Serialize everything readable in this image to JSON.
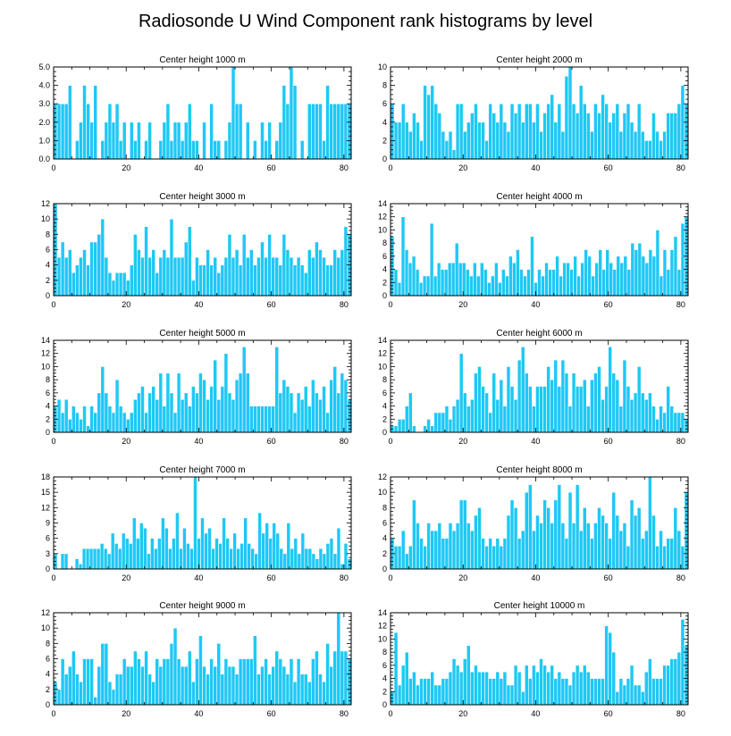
{
  "figure_title": "Radiosonde U Wind Component rank histograms by level",
  "colors": {
    "bar": "#1ec8f5",
    "bar_edge": "#ffffff",
    "axis": "#000000"
  },
  "chart_data": [
    {
      "type": "bar",
      "title": "Center height 1000 m",
      "xlim": [
        0,
        82
      ],
      "ylim": [
        0,
        5
      ],
      "xticks": [
        0,
        20,
        40,
        60,
        80
      ],
      "yticks": [
        0,
        1,
        2,
        3,
        4,
        5
      ],
      "ytick_labels": [
        "0.0",
        "1.0",
        "2.0",
        "3.0",
        "4.0",
        "5.0"
      ],
      "values": [
        3,
        3,
        3,
        3,
        4,
        0,
        1,
        2,
        4,
        3,
        2,
        4,
        0,
        1,
        2,
        3,
        2,
        3,
        1,
        2,
        0,
        2,
        1,
        2,
        0,
        1,
        2,
        0,
        0,
        1,
        2,
        3,
        1,
        2,
        2,
        1,
        2,
        3,
        1,
        1,
        0,
        2,
        0,
        3,
        1,
        1,
        0,
        1,
        2,
        5,
        3,
        3,
        0,
        2,
        0,
        1,
        0,
        2,
        1,
        2,
        0,
        1,
        2,
        4,
        3,
        5,
        4,
        0,
        1,
        0,
        3,
        3,
        3,
        3,
        1,
        4,
        3,
        3,
        3,
        3,
        3,
        3
      ]
    },
    {
      "type": "bar",
      "title": "Center height 2000 m",
      "xlim": [
        0,
        82
      ],
      "ylim": [
        0,
        10
      ],
      "xticks": [
        0,
        20,
        40,
        60,
        80
      ],
      "yticks": [
        0,
        2,
        4,
        6,
        8,
        10
      ],
      "values": [
        6,
        4,
        4,
        6,
        4,
        3,
        5,
        4,
        2,
        8,
        7,
        8,
        6,
        5,
        3,
        2,
        3,
        1,
        6,
        6,
        3,
        4,
        5,
        6,
        4,
        4,
        2,
        6,
        5,
        4,
        6,
        4,
        3,
        6,
        5,
        6,
        4,
        6,
        6,
        4,
        6,
        3,
        5,
        6,
        7,
        4,
        6,
        3,
        9,
        10,
        6,
        5,
        8,
        6,
        5,
        3,
        6,
        5,
        7,
        6,
        4,
        5,
        6,
        3,
        5,
        6,
        4,
        3,
        6,
        3,
        2,
        2,
        5,
        3,
        2,
        3,
        5,
        5,
        5,
        6,
        8,
        6
      ]
    },
    {
      "type": "bar",
      "title": "Center height 3000 m",
      "xlim": [
        0,
        82
      ],
      "ylim": [
        0,
        12
      ],
      "xticks": [
        0,
        20,
        40,
        60,
        80
      ],
      "yticks": [
        0,
        2,
        4,
        6,
        8,
        10,
        12
      ],
      "values": [
        12,
        5,
        7,
        5,
        6,
        3,
        4,
        5,
        6,
        4,
        7,
        7,
        8,
        10,
        5,
        3,
        2,
        3,
        3,
        3,
        2,
        4,
        8,
        6,
        5,
        9,
        5,
        6,
        3,
        5,
        6,
        5,
        10,
        5,
        5,
        5,
        7,
        9,
        2,
        5,
        4,
        4,
        6,
        4,
        5,
        3,
        4,
        5,
        8,
        5,
        6,
        4,
        8,
        5,
        6,
        4,
        5,
        7,
        5,
        8,
        5,
        5,
        4,
        8,
        6,
        5,
        4,
        5,
        4,
        3,
        6,
        5,
        7,
        6,
        5,
        4,
        4,
        6,
        5,
        6,
        9,
        8
      ]
    },
    {
      "type": "bar",
      "title": "Center height 4000 m",
      "xlim": [
        0,
        82
      ],
      "ylim": [
        0,
        14
      ],
      "xticks": [
        0,
        20,
        40,
        60,
        80
      ],
      "yticks": [
        0,
        2,
        4,
        6,
        8,
        10,
        12,
        14
      ],
      "values": [
        9,
        4,
        2,
        12,
        7,
        5,
        6,
        4,
        2,
        3,
        3,
        11,
        3,
        5,
        4,
        4,
        5,
        5,
        8,
        5,
        5,
        4,
        3,
        5,
        3,
        5,
        4,
        2,
        3,
        5,
        2,
        4,
        3,
        6,
        5,
        7,
        4,
        3,
        4,
        9,
        2,
        4,
        3,
        5,
        4,
        4,
        6,
        3,
        5,
        5,
        4,
        6,
        3,
        5,
        7,
        6,
        3,
        5,
        7,
        4,
        7,
        5,
        4,
        6,
        5,
        6,
        4,
        8,
        7,
        8,
        6,
        5,
        7,
        6,
        10,
        3,
        7,
        4,
        7,
        9,
        4,
        11,
        12
      ]
    },
    {
      "type": "bar",
      "title": "Center height 5000 m",
      "xlim": [
        0,
        82
      ],
      "ylim": [
        0,
        14
      ],
      "xticks": [
        0,
        20,
        40,
        60,
        80
      ],
      "yticks": [
        0,
        2,
        4,
        6,
        8,
        10,
        12,
        14
      ],
      "values": [
        4,
        5,
        3,
        5,
        2,
        4,
        3,
        2,
        4,
        1,
        4,
        3,
        6,
        10,
        6,
        4,
        3,
        8,
        4,
        3,
        2,
        3,
        5,
        6,
        7,
        3,
        6,
        7,
        5,
        9,
        4,
        9,
        6,
        3,
        9,
        5,
        6,
        4,
        7,
        6,
        9,
        8,
        5,
        7,
        11,
        5,
        7,
        12,
        6,
        5,
        8,
        9,
        13,
        9,
        4,
        4,
        4,
        4,
        4,
        4,
        4,
        13,
        6,
        8,
        7,
        6,
        3,
        6,
        5,
        7,
        4,
        8,
        6,
        5,
        7,
        3,
        8,
        10,
        6,
        9,
        8,
        5
      ]
    },
    {
      "type": "bar",
      "title": "Center height 6000 m",
      "xlim": [
        0,
        82
      ],
      "ylim": [
        0,
        14
      ],
      "xticks": [
        0,
        20,
        40,
        60,
        80
      ],
      "yticks": [
        0,
        2,
        4,
        6,
        8,
        10,
        12,
        14
      ],
      "values": [
        1,
        1,
        2,
        2,
        4,
        6,
        1,
        0,
        0,
        1,
        2,
        1,
        3,
        3,
        3,
        4,
        2,
        4,
        5,
        12,
        6,
        4,
        5,
        9,
        10,
        7,
        6,
        3,
        9,
        5,
        8,
        4,
        10,
        7,
        5,
        11,
        13,
        9,
        7,
        4,
        7,
        7,
        7,
        10,
        8,
        11,
        7,
        11,
        9,
        4,
        9,
        7,
        7,
        8,
        4,
        8,
        9,
        10,
        5,
        7,
        13,
        9,
        8,
        4,
        11,
        7,
        5,
        6,
        10,
        6,
        5,
        6,
        4,
        2,
        4,
        3,
        7,
        4,
        3,
        3,
        3,
        2
      ]
    },
    {
      "type": "bar",
      "title": "Center height 7000 m",
      "xlim": [
        0,
        82
      ],
      "ylim": [
        0,
        18
      ],
      "xticks": [
        0,
        20,
        40,
        60,
        80
      ],
      "yticks": [
        0,
        3,
        6,
        9,
        12,
        15,
        18
      ],
      "values": [
        3,
        0,
        3,
        3,
        0,
        0,
        2,
        1,
        4,
        4,
        4,
        4,
        4,
        5,
        4,
        3,
        7,
        5,
        4,
        7,
        6,
        5,
        10,
        6,
        9,
        8,
        3,
        6,
        4,
        6,
        10,
        8,
        4,
        6,
        11,
        4,
        8,
        5,
        4,
        18,
        6,
        10,
        7,
        8,
        4,
        6,
        5,
        10,
        6,
        4,
        7,
        4,
        5,
        10,
        5,
        4,
        3,
        11,
        7,
        9,
        6,
        9,
        7,
        4,
        3,
        9,
        4,
        6,
        3,
        7,
        4,
        4,
        3,
        2,
        4,
        3,
        5,
        6,
        3,
        8,
        1,
        5,
        2
      ]
    },
    {
      "type": "bar",
      "title": "Center height 8000 m",
      "xlim": [
        0,
        82
      ],
      "ylim": [
        0,
        12
      ],
      "xticks": [
        0,
        20,
        40,
        60,
        80
      ],
      "yticks": [
        0,
        2,
        4,
        6,
        8,
        10,
        12
      ],
      "values": [
        4,
        3,
        3,
        5,
        2,
        3,
        9,
        6,
        4,
        3,
        6,
        5,
        5,
        6,
        4,
        4,
        6,
        5,
        6,
        9,
        9,
        6,
        5,
        7,
        8,
        4,
        3,
        4,
        3,
        4,
        3,
        4,
        7,
        9,
        8,
        4,
        5,
        10,
        11,
        5,
        7,
        6,
        9,
        8,
        6,
        9,
        11,
        6,
        4,
        10,
        6,
        11,
        5,
        8,
        6,
        4,
        6,
        8,
        7,
        6,
        4,
        10,
        7,
        5,
        6,
        3,
        9,
        7,
        8,
        4,
        5,
        12,
        7,
        3,
        5,
        3,
        4,
        4,
        8,
        5,
        3,
        10
      ]
    },
    {
      "type": "bar",
      "title": "Center height 9000 m",
      "xlim": [
        0,
        82
      ],
      "ylim": [
        0,
        12
      ],
      "xticks": [
        0,
        20,
        40,
        60,
        80
      ],
      "yticks": [
        0,
        2,
        4,
        6,
        8,
        10,
        12
      ],
      "values": [
        3,
        2,
        6,
        4,
        5,
        7,
        4,
        3,
        6,
        6,
        6,
        1,
        5,
        8,
        8,
        3,
        2,
        4,
        4,
        6,
        5,
        5,
        7,
        6,
        5,
        7,
        4,
        3,
        6,
        5,
        6,
        6,
        8,
        10,
        6,
        5,
        5,
        7,
        3,
        6,
        9,
        5,
        4,
        6,
        5,
        8,
        4,
        6,
        5,
        5,
        4,
        6,
        6,
        6,
        6,
        9,
        4,
        5,
        6,
        4,
        5,
        7,
        6,
        5,
        4,
        6,
        3,
        6,
        4,
        4,
        3,
        6,
        7,
        4,
        3,
        8,
        5,
        7,
        12,
        7,
        7,
        6
      ]
    },
    {
      "type": "bar",
      "title": "Center height 10000 m",
      "xlim": [
        0,
        82
      ],
      "ylim": [
        0,
        14
      ],
      "xticks": [
        0,
        20,
        40,
        60,
        80
      ],
      "yticks": [
        0,
        2,
        4,
        6,
        8,
        10,
        12,
        14
      ],
      "values": [
        2,
        11,
        3,
        6,
        8,
        4,
        5,
        3,
        4,
        4,
        4,
        5,
        3,
        3,
        4,
        4,
        5,
        7,
        6,
        5,
        7,
        9,
        5,
        6,
        5,
        5,
        5,
        4,
        4,
        5,
        4,
        5,
        3,
        3,
        6,
        5,
        2,
        6,
        4,
        6,
        5,
        7,
        6,
        5,
        6,
        4,
        5,
        4,
        4,
        3,
        5,
        6,
        5,
        6,
        5,
        4,
        4,
        4,
        4,
        12,
        11,
        8,
        2,
        4,
        3,
        4,
        6,
        3,
        3,
        2,
        5,
        7,
        4,
        4,
        4,
        6,
        6,
        7,
        7,
        8,
        13,
        9
      ]
    }
  ]
}
